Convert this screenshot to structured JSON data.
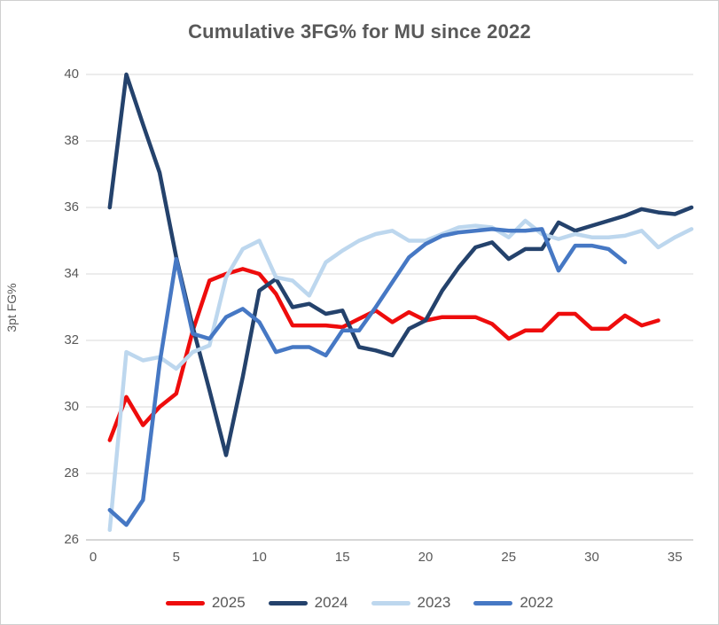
{
  "title": "Cumulative 3FG% for MU since 2022",
  "y_axis": {
    "title": "3pt FG%",
    "ticks": [
      "40",
      "38",
      "36",
      "34",
      "32",
      "30",
      "28",
      "26"
    ],
    "min": 26,
    "max": 40
  },
  "x_axis": {
    "ticks": [
      "0",
      "5",
      "10",
      "15",
      "20",
      "25",
      "30",
      "35"
    ],
    "min": 0,
    "max": 36.5
  },
  "legend": {
    "items": [
      {
        "label": "2025",
        "color": "#ee0c0c"
      },
      {
        "label": "2024",
        "color": "#24426c"
      },
      {
        "label": "2023",
        "color": "#bdd7ee"
      },
      {
        "label": "2022",
        "color": "#4678c4"
      }
    ]
  },
  "colors": {
    "gridline": "#d9d9d9",
    "axis_line": "#bfbfbf",
    "text": "#595959"
  },
  "chart_data": {
    "type": "line",
    "title": "Cumulative 3FG% for MU since 2022",
    "xlabel": "",
    "ylabel": "3pt FG%",
    "x_start": 1,
    "x_is_game_number": true,
    "xlim": [
      0,
      36.5
    ],
    "ylim": [
      26,
      40
    ],
    "grid": "horizontal",
    "legend_position": "bottom",
    "series": [
      {
        "name": "2025",
        "color": "#ee0c0c",
        "values": [
          29.0,
          30.3,
          29.45,
          30.0,
          30.4,
          32.3,
          33.8,
          34.0,
          34.15,
          34.0,
          33.4,
          32.45,
          32.45,
          32.45,
          32.4,
          32.65,
          32.9,
          32.55,
          32.85,
          32.6,
          32.7,
          32.7,
          32.7,
          32.5,
          32.05,
          32.3,
          32.3,
          32.8,
          32.8,
          32.35,
          32.35,
          32.75,
          32.45,
          32.6
        ]
      },
      {
        "name": "2024",
        "color": "#24426c",
        "values": [
          36.0,
          40.0,
          38.5,
          37.05,
          34.5,
          32.4,
          30.5,
          28.55,
          30.9,
          33.5,
          33.85,
          33.0,
          33.1,
          32.8,
          32.9,
          31.8,
          31.7,
          31.55,
          32.35,
          32.6,
          33.5,
          34.2,
          34.8,
          34.95,
          34.45,
          34.75,
          34.75,
          35.55,
          35.3,
          35.45,
          35.6,
          35.75,
          35.95,
          35.85,
          35.8,
          36.0
        ]
      },
      {
        "name": "2023",
        "color": "#bdd7ee",
        "values": [
          26.3,
          31.65,
          31.4,
          31.5,
          31.15,
          31.65,
          31.85,
          33.9,
          34.75,
          35.0,
          33.9,
          33.8,
          33.35,
          34.35,
          34.7,
          35.0,
          35.2,
          35.3,
          35.0,
          35.0,
          35.2,
          35.4,
          35.45,
          35.4,
          35.1,
          35.6,
          35.2,
          35.05,
          35.2,
          35.1,
          35.1,
          35.15,
          35.3,
          34.8,
          35.1,
          35.35
        ]
      },
      {
        "name": "2022",
        "color": "#4678c4",
        "values": [
          26.9,
          26.45,
          27.2,
          31.3,
          34.45,
          32.2,
          32.05,
          32.7,
          32.95,
          32.55,
          31.65,
          31.8,
          31.8,
          31.55,
          32.3,
          32.3,
          33.0,
          33.75,
          34.5,
          34.9,
          35.15,
          35.25,
          35.3,
          35.35,
          35.3,
          35.3,
          35.35,
          34.1,
          34.85,
          34.85,
          34.75,
          34.35
        ]
      }
    ]
  }
}
